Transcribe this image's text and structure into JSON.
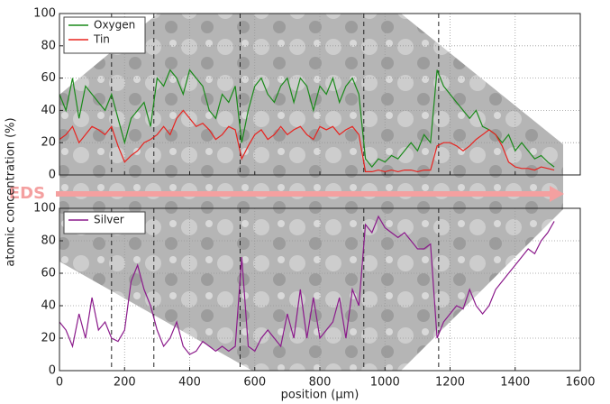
{
  "chart_data": [
    {
      "type": "line",
      "annotation": "EDS",
      "ylabel": "atomic concentration (%)",
      "x": [
        0,
        20,
        40,
        60,
        80,
        100,
        120,
        140,
        160,
        180,
        200,
        220,
        240,
        260,
        280,
        300,
        320,
        340,
        360,
        380,
        400,
        420,
        440,
        460,
        480,
        500,
        520,
        540,
        560,
        580,
        600,
        620,
        640,
        660,
        680,
        700,
        720,
        740,
        760,
        780,
        800,
        820,
        840,
        860,
        880,
        900,
        920,
        940,
        960,
        980,
        1000,
        1020,
        1040,
        1060,
        1080,
        1100,
        1120,
        1140,
        1160,
        1180,
        1200,
        1220,
        1240,
        1260,
        1280,
        1300,
        1320,
        1340,
        1360,
        1380,
        1400,
        1420,
        1440,
        1460,
        1480,
        1500,
        1520
      ],
      "series": [
        {
          "name": "Oxygen",
          "color": "#1a8a1a",
          "values": [
            50,
            40,
            60,
            35,
            55,
            50,
            45,
            40,
            50,
            35,
            20,
            35,
            40,
            45,
            30,
            60,
            55,
            65,
            60,
            50,
            65,
            60,
            55,
            40,
            35,
            50,
            45,
            55,
            20,
            40,
            55,
            60,
            50,
            45,
            55,
            60,
            45,
            60,
            55,
            40,
            55,
            50,
            60,
            45,
            55,
            60,
            50,
            10,
            5,
            10,
            8,
            12,
            10,
            15,
            20,
            15,
            25,
            20,
            65,
            55,
            50,
            45,
            40,
            35,
            40,
            30,
            28,
            25,
            20,
            25,
            15,
            20,
            15,
            10,
            12,
            8,
            5
          ]
        },
        {
          "name": "Tin",
          "color": "#e8231f",
          "values": [
            22,
            25,
            30,
            20,
            25,
            30,
            28,
            25,
            30,
            18,
            8,
            12,
            15,
            20,
            22,
            25,
            30,
            25,
            35,
            40,
            35,
            30,
            32,
            28,
            22,
            25,
            30,
            28,
            10,
            18,
            25,
            28,
            22,
            25,
            30,
            25,
            28,
            30,
            25,
            22,
            30,
            28,
            30,
            25,
            28,
            30,
            25,
            2,
            2,
            3,
            2,
            3,
            2,
            3,
            3,
            2,
            3,
            3,
            18,
            20,
            20,
            18,
            15,
            18,
            22,
            25,
            28,
            25,
            18,
            8,
            5,
            4,
            4,
            3,
            5,
            4,
            3
          ]
        }
      ],
      "xlim": [
        0,
        1600
      ],
      "xticks": [
        0,
        200,
        400,
        600,
        800,
        1000,
        1200,
        1400,
        1600
      ],
      "ylim": [
        0,
        100
      ],
      "yticks": [
        0,
        20,
        40,
        60,
        80,
        100
      ],
      "vlines": [
        160,
        290,
        555,
        935,
        1165
      ],
      "grid": true,
      "legend": "upper left"
    },
    {
      "type": "line",
      "xlabel": "position (μm)",
      "x": [
        0,
        20,
        40,
        60,
        80,
        100,
        120,
        140,
        160,
        180,
        200,
        220,
        240,
        260,
        280,
        300,
        320,
        340,
        360,
        380,
        400,
        420,
        440,
        460,
        480,
        500,
        520,
        540,
        560,
        580,
        600,
        620,
        640,
        660,
        680,
        700,
        720,
        740,
        760,
        780,
        800,
        820,
        840,
        860,
        880,
        900,
        920,
        940,
        960,
        980,
        1000,
        1020,
        1040,
        1060,
        1080,
        1100,
        1120,
        1140,
        1160,
        1180,
        1200,
        1220,
        1240,
        1260,
        1280,
        1300,
        1320,
        1340,
        1360,
        1380,
        1400,
        1420,
        1440,
        1460,
        1480,
        1500,
        1520
      ],
      "series": [
        {
          "name": "Silver",
          "color": "#8b1a8b",
          "values": [
            30,
            25,
            15,
            35,
            20,
            45,
            25,
            30,
            20,
            18,
            25,
            55,
            65,
            50,
            40,
            25,
            15,
            20,
            30,
            15,
            10,
            12,
            18,
            15,
            12,
            15,
            12,
            15,
            70,
            15,
            12,
            20,
            25,
            20,
            15,
            35,
            20,
            50,
            20,
            45,
            20,
            25,
            30,
            45,
            20,
            50,
            40,
            90,
            85,
            95,
            88,
            85,
            82,
            85,
            80,
            75,
            75,
            78,
            20,
            30,
            35,
            40,
            38,
            50,
            40,
            35,
            40,
            50,
            55,
            60,
            65,
            70,
            75,
            72,
            80,
            85,
            92
          ]
        }
      ],
      "xlim": [
        0,
        1600
      ],
      "xticks": [
        0,
        200,
        400,
        600,
        800,
        1000,
        1200,
        1400,
        1600
      ],
      "ylim": [
        0,
        100
      ],
      "yticks": [
        0,
        20,
        40,
        60,
        80,
        100
      ],
      "vlines": [
        160,
        290,
        555,
        935,
        1165
      ],
      "grid": true,
      "legend": "upper left"
    }
  ]
}
